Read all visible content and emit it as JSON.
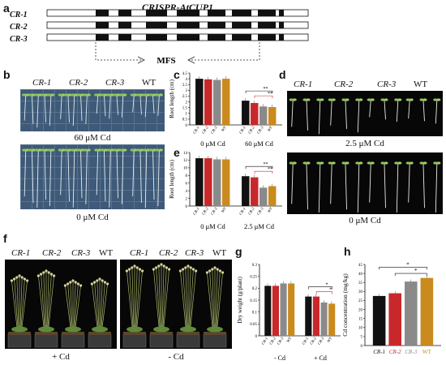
{
  "panel_a": {
    "letter": "a",
    "title": "CRISPR-AtCUP1",
    "lines": [
      "CR-1",
      "CR-2",
      "CR-3"
    ],
    "domain_label": "MFS"
  },
  "panel_b": {
    "letter": "b",
    "lines": [
      "CR-1",
      "CR-2",
      "CR-3",
      "WT"
    ],
    "top_condition": "60 μM Cd",
    "bottom_condition": "0 μM Cd"
  },
  "panel_d": {
    "letter": "d",
    "lines": [
      "CR-1",
      "CR-2",
      "CR-3",
      "WT"
    ],
    "top_condition": "2.5 μM Cd",
    "bottom_condition": "0 μM Cd"
  },
  "panel_f": {
    "letter": "f",
    "left_lines": [
      "CR-1",
      "CR-2",
      "CR-3",
      "WT"
    ],
    "right_lines": [
      "CR-1",
      "CR-2",
      "CR-3",
      "WT"
    ],
    "left_condition": "+ Cd",
    "right_condition": "- Cd"
  },
  "colors": {
    "CR-1": "#111111",
    "CR-2": "#c8282a",
    "CR-3": "#8a8a8a",
    "WT": "#c98a1e"
  },
  "chart_data": [
    {
      "id": "c",
      "type": "bar",
      "ylabel": "Root length (cm)",
      "ylim": [
        0,
        4.5
      ],
      "yticks": [
        0,
        0.5,
        1,
        1.5,
        2,
        2.5,
        3,
        3.5,
        4,
        4.5
      ],
      "categories": [
        "CR-1",
        "CR-2",
        "CR-3",
        "WT"
      ],
      "groups": [
        {
          "name": "0 μM Cd",
          "values": [
            4.0,
            3.95,
            3.9,
            4.0
          ]
        },
        {
          "name": "60 μM Cd",
          "values": [
            2.1,
            1.9,
            1.6,
            1.55
          ]
        }
      ],
      "significance": [
        "**",
        "**"
      ]
    },
    {
      "id": "e",
      "type": "bar",
      "ylabel": "Root length (cm)",
      "ylim": [
        0,
        14
      ],
      "yticks": [
        0,
        2,
        4,
        6,
        8,
        10,
        12,
        14
      ],
      "categories": [
        "CR-1",
        "CR-2",
        "CR-3",
        "WT"
      ],
      "groups": [
        {
          "name": "0 μM Cd",
          "values": [
            12.5,
            12.5,
            12.2,
            12.2
          ]
        },
        {
          "name": "2.5 μM Cd",
          "values": [
            7.8,
            7.5,
            4.8,
            5.2
          ]
        }
      ],
      "significance": [
        "**",
        "**"
      ]
    },
    {
      "id": "g",
      "type": "bar",
      "ylabel": "Dry weight (g/plant)",
      "ylim": [
        0,
        0.3
      ],
      "yticks": [
        0,
        0.05,
        0.1,
        0.15,
        0.2,
        0.25,
        0.3
      ],
      "categories": [
        "CR-1",
        "CR-2",
        "CR-3",
        "WT"
      ],
      "groups": [
        {
          "name": "- Cd",
          "values": [
            0.21,
            0.21,
            0.22,
            0.22
          ]
        },
        {
          "name": "+ Cd",
          "values": [
            0.165,
            0.165,
            0.14,
            0.135
          ]
        }
      ],
      "significance": [
        "*",
        "*"
      ]
    },
    {
      "id": "h",
      "type": "bar",
      "ylabel": "Cd concentration (mg/kg)",
      "ylim": [
        0,
        45
      ],
      "yticks": [
        0,
        5,
        10,
        15,
        20,
        25,
        30,
        35,
        40,
        45
      ],
      "categories": [
        "CR-1",
        "CR-2",
        "CR-3",
        "WT"
      ],
      "values": [
        27.5,
        29,
        35.5,
        37.5
      ],
      "significance": [
        "*",
        "*"
      ]
    }
  ]
}
